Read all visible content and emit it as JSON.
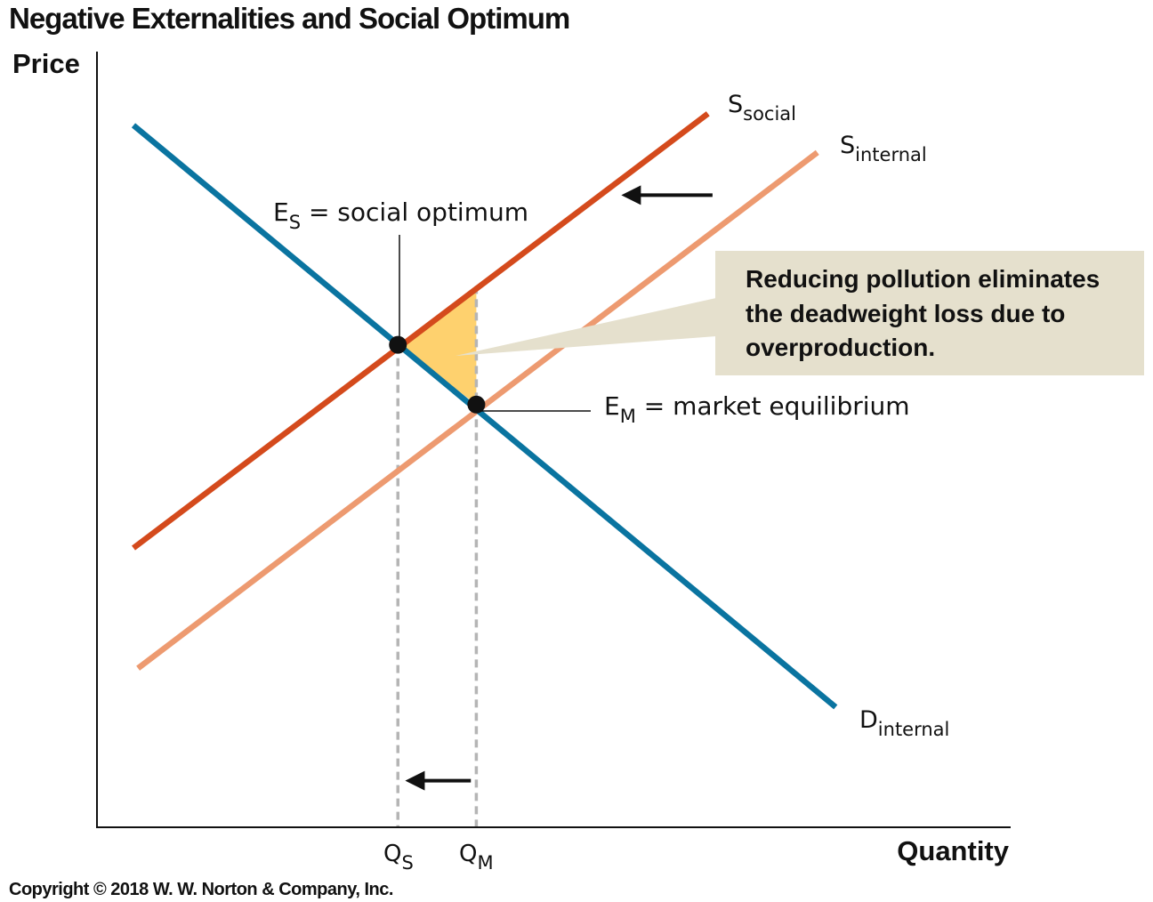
{
  "chart_data": {
    "type": "line",
    "title": "Negative Externalities and Social Optimum",
    "ylabel": "Price",
    "xlabel": "Quantity",
    "xlim": [
      0,
      100
    ],
    "ylim": [
      0,
      100
    ],
    "grid": false,
    "series": [
      {
        "name": "S",
        "subscript": "social",
        "color": "#d44a1c",
        "points": [
          [
            4,
            36
          ],
          [
            67,
            92
          ]
        ]
      },
      {
        "name": "S",
        "subscript": "internal",
        "color": "#ed9a70",
        "points": [
          [
            4.5,
            20.5
          ],
          [
            79,
            87
          ]
        ]
      },
      {
        "name": "D",
        "subscript": "internal",
        "color": "#0a74a0",
        "points": [
          [
            4,
            90.5
          ],
          [
            81,
            15.5
          ]
        ]
      }
    ],
    "equilibria": [
      {
        "main": "E",
        "sub": "S",
        "rest": " = social optimum",
        "x": 33,
        "y": 62.2
      },
      {
        "main": "E",
        "sub": "M",
        "rest": " = market equilibrium",
        "x": 41.6,
        "y": 54.5
      }
    ],
    "ticks": [
      {
        "main": "Q",
        "sub": "S",
        "x": 33
      },
      {
        "main": "Q",
        "sub": "M",
        "x": 41.6
      }
    ],
    "deadweight_loss": {
      "color": "#fed16e",
      "points": [
        [
          33,
          62.2
        ],
        [
          41.6,
          69.8
        ],
        [
          41.6,
          54.5
        ]
      ]
    },
    "callout": {
      "lines": [
        "Reducing pollution eliminates",
        "the deadweight loss due to",
        "overproduction."
      ],
      "background": "#e5e0cd"
    },
    "arrows": [
      {
        "from": [
          67.5,
          81.5
        ],
        "to": [
          57.5,
          81.5
        ]
      },
      {
        "from": [
          41,
          6
        ],
        "to": [
          33.8,
          6
        ]
      }
    ]
  },
  "footer": {
    "copyright": "Copyright © 2018 W. W. Norton & Company, Inc."
  }
}
